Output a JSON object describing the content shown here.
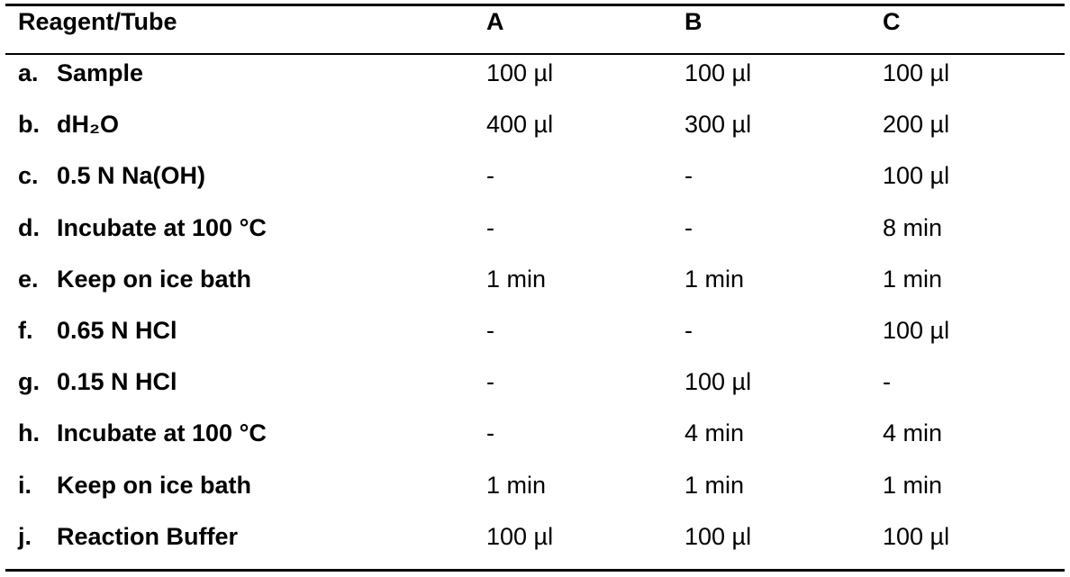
{
  "table": {
    "header": [
      "Reagent/Tube",
      "A",
      "B",
      "C"
    ],
    "rows": [
      {
        "step": "a.",
        "label": "Sample",
        "cells": [
          "100 µl",
          "100 µl",
          "100 µl"
        ]
      },
      {
        "step": "b.",
        "label": "dH₂O",
        "cells": [
          "400 µl",
          "300 µl",
          "200 µl"
        ]
      },
      {
        "step": "c.",
        "label": "0.5 N Na(OH)",
        "cells": [
          "-",
          "-",
          "100 µl"
        ]
      },
      {
        "step": "d.",
        "label": "Incubate at 100 °C",
        "cells": [
          "-",
          "-",
          "8 min"
        ]
      },
      {
        "step": "e.",
        "label": "Keep on ice bath",
        "cells": [
          "1 min",
          "1 min",
          "1 min"
        ]
      },
      {
        "step": "f.",
        "label": "0.65 N HCl",
        "cells": [
          "-",
          "-",
          "100 µl"
        ]
      },
      {
        "step": "g.",
        "label": "0.15 N HCl",
        "cells": [
          "-",
          "100 µl",
          "-"
        ]
      },
      {
        "step": "h.",
        "label": "Incubate at 100 °C",
        "cells": [
          "-",
          "4 min",
          "4 min"
        ]
      },
      {
        "step": "i.",
        "label": "Keep on ice bath",
        "cells": [
          "1 min",
          "1 min",
          "1 min"
        ]
      },
      {
        "step": "j.",
        "label": "Reaction Buffer",
        "cells": [
          "100 µl",
          "100 µl",
          "100 µl"
        ]
      }
    ]
  }
}
